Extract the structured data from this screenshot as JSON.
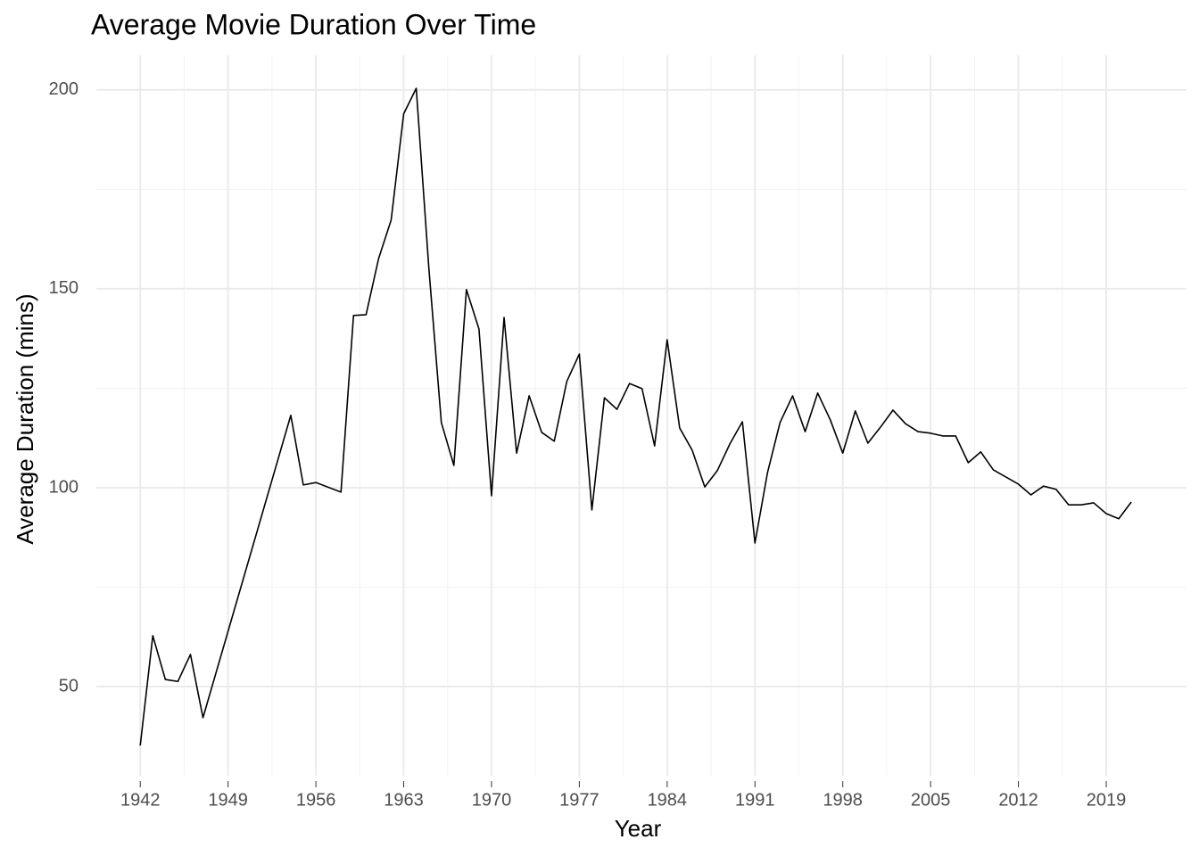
{
  "chart_data": {
    "type": "line",
    "title": "Average Movie Duration Over Time",
    "xlabel": "Year",
    "ylabel": "Average Duration (mins)",
    "x": [
      1942,
      1943,
      1944,
      1945,
      1946,
      1947,
      1954,
      1955,
      1956,
      1958,
      1959,
      1960,
      1961,
      1962,
      1963,
      1964,
      1965,
      1966,
      1967,
      1968,
      1969,
      1970,
      1971,
      1972,
      1973,
      1974,
      1975,
      1976,
      1977,
      1978,
      1979,
      1980,
      1981,
      1982,
      1983,
      1984,
      1985,
      1986,
      1987,
      1988,
      1989,
      1990,
      1991,
      1992,
      1993,
      1994,
      1995,
      1996,
      1997,
      1998,
      1999,
      2000,
      2001,
      2002,
      2003,
      2004,
      2005,
      2006,
      2007,
      2008,
      2009,
      2010,
      2011,
      2012,
      2013,
      2014,
      2015,
      2016,
      2017,
      2018,
      2019,
      2020,
      2021
    ],
    "series": [
      {
        "name": "Average Duration",
        "color": "#000000",
        "values": [
          35.2,
          62.8,
          51.8,
          51.3,
          58.1,
          42.2,
          118.2,
          100.7,
          101.3,
          98.9,
          143.3,
          143.5,
          157.6,
          167.3,
          194,
          200.4,
          155.4,
          116.4,
          105.6,
          149.8,
          139.9,
          98,
          142.8,
          108.7,
          123.1,
          113.9,
          111.7,
          126.7,
          133.6,
          94.4,
          122.6,
          119.7,
          126.2,
          124.9,
          110.5,
          137.2,
          115,
          109.4,
          100.2,
          104.3,
          111,
          116.6,
          86.1,
          103.8,
          116.4,
          123.1,
          114.1,
          123.8,
          117.1,
          108.7,
          119.3,
          111.2,
          115.2,
          119.5,
          116.1,
          114.1,
          113.7,
          113,
          113,
          106.3,
          109,
          104.5,
          102.7,
          100.9,
          98.2,
          100.4,
          99.6,
          95.7,
          95.7,
          96.2,
          93.5,
          92.2,
          96.4
        ]
      }
    ],
    "xlim": [
      1938.5,
      2025.4
    ],
    "xticks": [
      1942,
      1949,
      1956,
      1963,
      1970,
      1977,
      1984,
      1991,
      1998,
      2005,
      2012,
      2019
    ],
    "ylim": [
      27.6,
      208.7
    ],
    "yticks": [
      50,
      100,
      150,
      200
    ],
    "grid": true
  }
}
